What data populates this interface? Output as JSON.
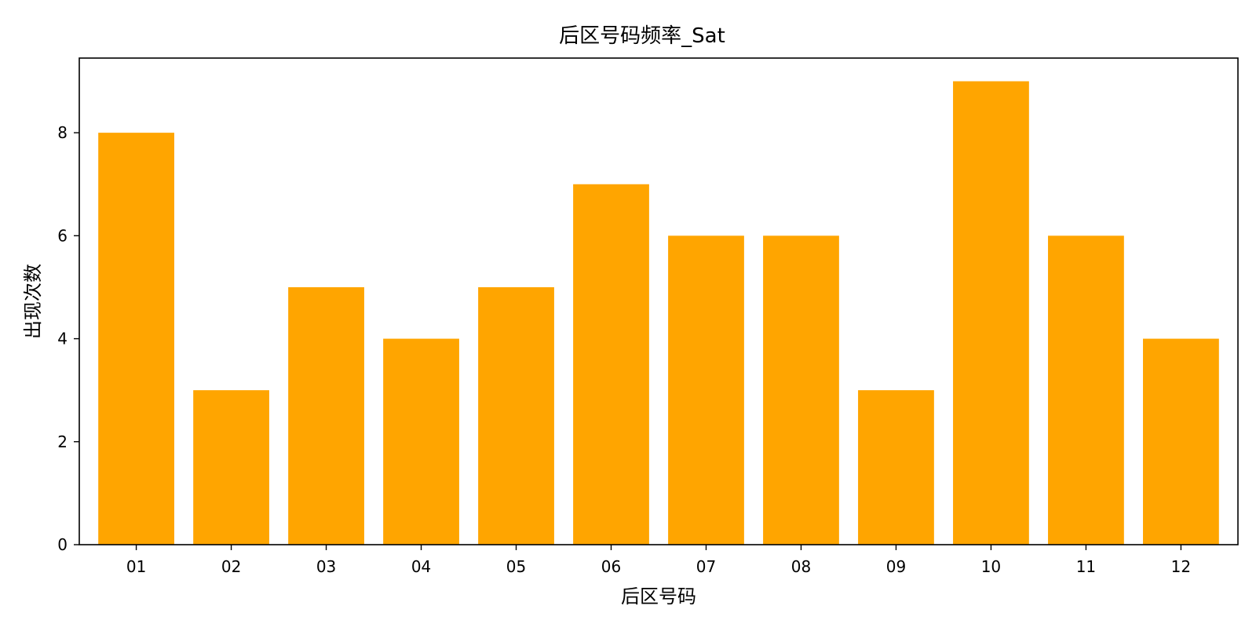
{
  "chart_data": {
    "type": "bar",
    "title": "后区号码频率_Sat",
    "xlabel": "后区号码",
    "ylabel": "出现次数",
    "categories": [
      "01",
      "02",
      "03",
      "04",
      "05",
      "06",
      "07",
      "08",
      "09",
      "10",
      "11",
      "12"
    ],
    "values": [
      8,
      3,
      5,
      4,
      5,
      7,
      6,
      6,
      3,
      9,
      6,
      4
    ],
    "ylim": [
      0,
      9.45
    ],
    "yticks": [
      0,
      2,
      4,
      6,
      8
    ],
    "grid": false,
    "legend": "none",
    "bar_color": "#ffa500"
  }
}
